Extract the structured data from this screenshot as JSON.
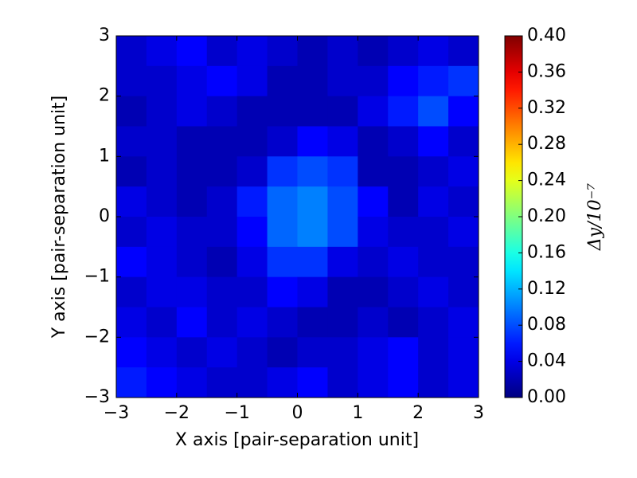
{
  "chart_data": {
    "type": "heatmap",
    "xlabel": "X axis [pair-separation unit]",
    "ylabel": "Y axis [pair-separation unit]",
    "colorbar_label": "Δy/10⁻⁷",
    "colormap": "jet",
    "xlim": [
      -3,
      3
    ],
    "ylim": [
      -3,
      3
    ],
    "xticks": [
      {
        "value": -3,
        "label": "−3"
      },
      {
        "value": -2,
        "label": "−2"
      },
      {
        "value": -1,
        "label": "−1"
      },
      0,
      1,
      2,
      3
    ],
    "yticks": [
      {
        "value": -3,
        "label": "−3"
      },
      {
        "value": -2,
        "label": "−2"
      },
      {
        "value": -1,
        "label": "−1"
      },
      0,
      1,
      2,
      3
    ],
    "clim": [
      0,
      0.4
    ],
    "cticks": [
      {
        "value": 0,
        "label": "0.00"
      },
      {
        "value": 0.04,
        "label": "0.04"
      },
      {
        "value": 0.08,
        "label": "0.08"
      },
      {
        "value": 0.12,
        "label": "0.12"
      },
      {
        "value": 0.16,
        "label": "0.16"
      },
      {
        "value": 0.2,
        "label": "0.20"
      },
      {
        "value": 0.24,
        "label": "0.24"
      },
      {
        "value": 0.28,
        "label": "0.28"
      },
      {
        "value": 0.32,
        "label": "0.32"
      },
      {
        "value": 0.36,
        "label": "0.36"
      },
      {
        "value": 0.4,
        "label": "0.40"
      }
    ],
    "x": [
      -2.75,
      -2.25,
      -1.75,
      -1.25,
      -0.75,
      -0.25,
      0.25,
      0.75,
      1.25,
      1.75,
      2.25,
      2.75
    ],
    "y": [
      2.75,
      2.25,
      1.75,
      1.25,
      0.75,
      0.25,
      -0.25,
      -0.75,
      -1.25,
      -1.75,
      -2.25,
      -2.75
    ],
    "z": [
      [
        0.03,
        0.04,
        0.05,
        0.03,
        0.04,
        0.03,
        0.02,
        0.03,
        0.02,
        0.03,
        0.04,
        0.03
      ],
      [
        0.03,
        0.03,
        0.04,
        0.05,
        0.04,
        0.02,
        0.02,
        0.03,
        0.03,
        0.05,
        0.06,
        0.07
      ],
      [
        0.02,
        0.03,
        0.04,
        0.03,
        0.02,
        0.02,
        0.02,
        0.02,
        0.04,
        0.06,
        0.08,
        0.05
      ],
      [
        0.03,
        0.03,
        0.02,
        0.02,
        0.02,
        0.03,
        0.05,
        0.04,
        0.02,
        0.03,
        0.05,
        0.03
      ],
      [
        0.02,
        0.03,
        0.02,
        0.02,
        0.03,
        0.07,
        0.08,
        0.07,
        0.02,
        0.02,
        0.03,
        0.04
      ],
      [
        0.04,
        0.03,
        0.02,
        0.03,
        0.06,
        0.09,
        0.1,
        0.08,
        0.05,
        0.02,
        0.04,
        0.03
      ],
      [
        0.03,
        0.04,
        0.03,
        0.03,
        0.05,
        0.09,
        0.1,
        0.08,
        0.04,
        0.03,
        0.03,
        0.04
      ],
      [
        0.05,
        0.04,
        0.03,
        0.02,
        0.04,
        0.07,
        0.07,
        0.04,
        0.03,
        0.04,
        0.03,
        0.03
      ],
      [
        0.03,
        0.04,
        0.04,
        0.03,
        0.03,
        0.05,
        0.04,
        0.02,
        0.02,
        0.03,
        0.04,
        0.03
      ],
      [
        0.04,
        0.03,
        0.05,
        0.03,
        0.04,
        0.03,
        0.02,
        0.02,
        0.03,
        0.02,
        0.03,
        0.04
      ],
      [
        0.05,
        0.04,
        0.03,
        0.04,
        0.03,
        0.02,
        0.03,
        0.03,
        0.04,
        0.05,
        0.03,
        0.04
      ],
      [
        0.06,
        0.05,
        0.04,
        0.03,
        0.03,
        0.04,
        0.05,
        0.03,
        0.04,
        0.05,
        0.03,
        0.04
      ]
    ]
  }
}
